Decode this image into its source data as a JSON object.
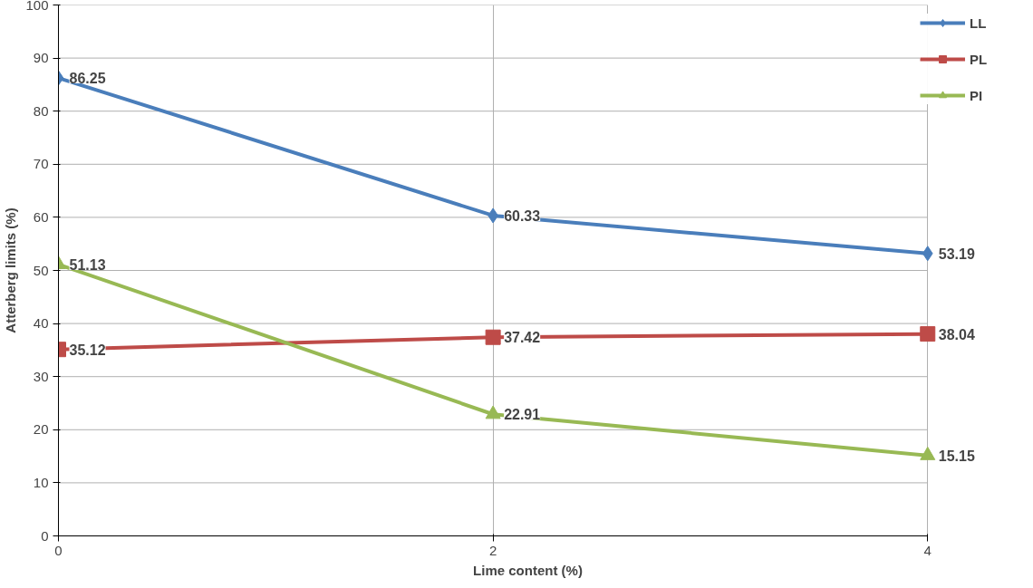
{
  "chart_data": {
    "type": "line",
    "xlabel": "Lime content (%)",
    "ylabel": "Atterberg limits (%)",
    "x": [
      0,
      2,
      4
    ],
    "xlim": [
      0,
      4
    ],
    "xticks": [
      0,
      2,
      4
    ],
    "ylim": [
      0,
      100
    ],
    "yticks": [
      0,
      10,
      20,
      30,
      40,
      50,
      60,
      70,
      80,
      90,
      100
    ],
    "grid": true,
    "legend": "top right",
    "data_labels": true,
    "series": [
      {
        "name": "LL",
        "color": "#4a7ebb",
        "marker": "diamond",
        "values": [
          86.25,
          60.33,
          53.19
        ]
      },
      {
        "name": "PL",
        "color": "#be4b48",
        "marker": "square",
        "values": [
          35.12,
          37.42,
          38.04
        ]
      },
      {
        "name": "PI",
        "color": "#98b954",
        "marker": "triangle",
        "values": [
          51.13,
          22.91,
          15.15
        ]
      }
    ]
  }
}
